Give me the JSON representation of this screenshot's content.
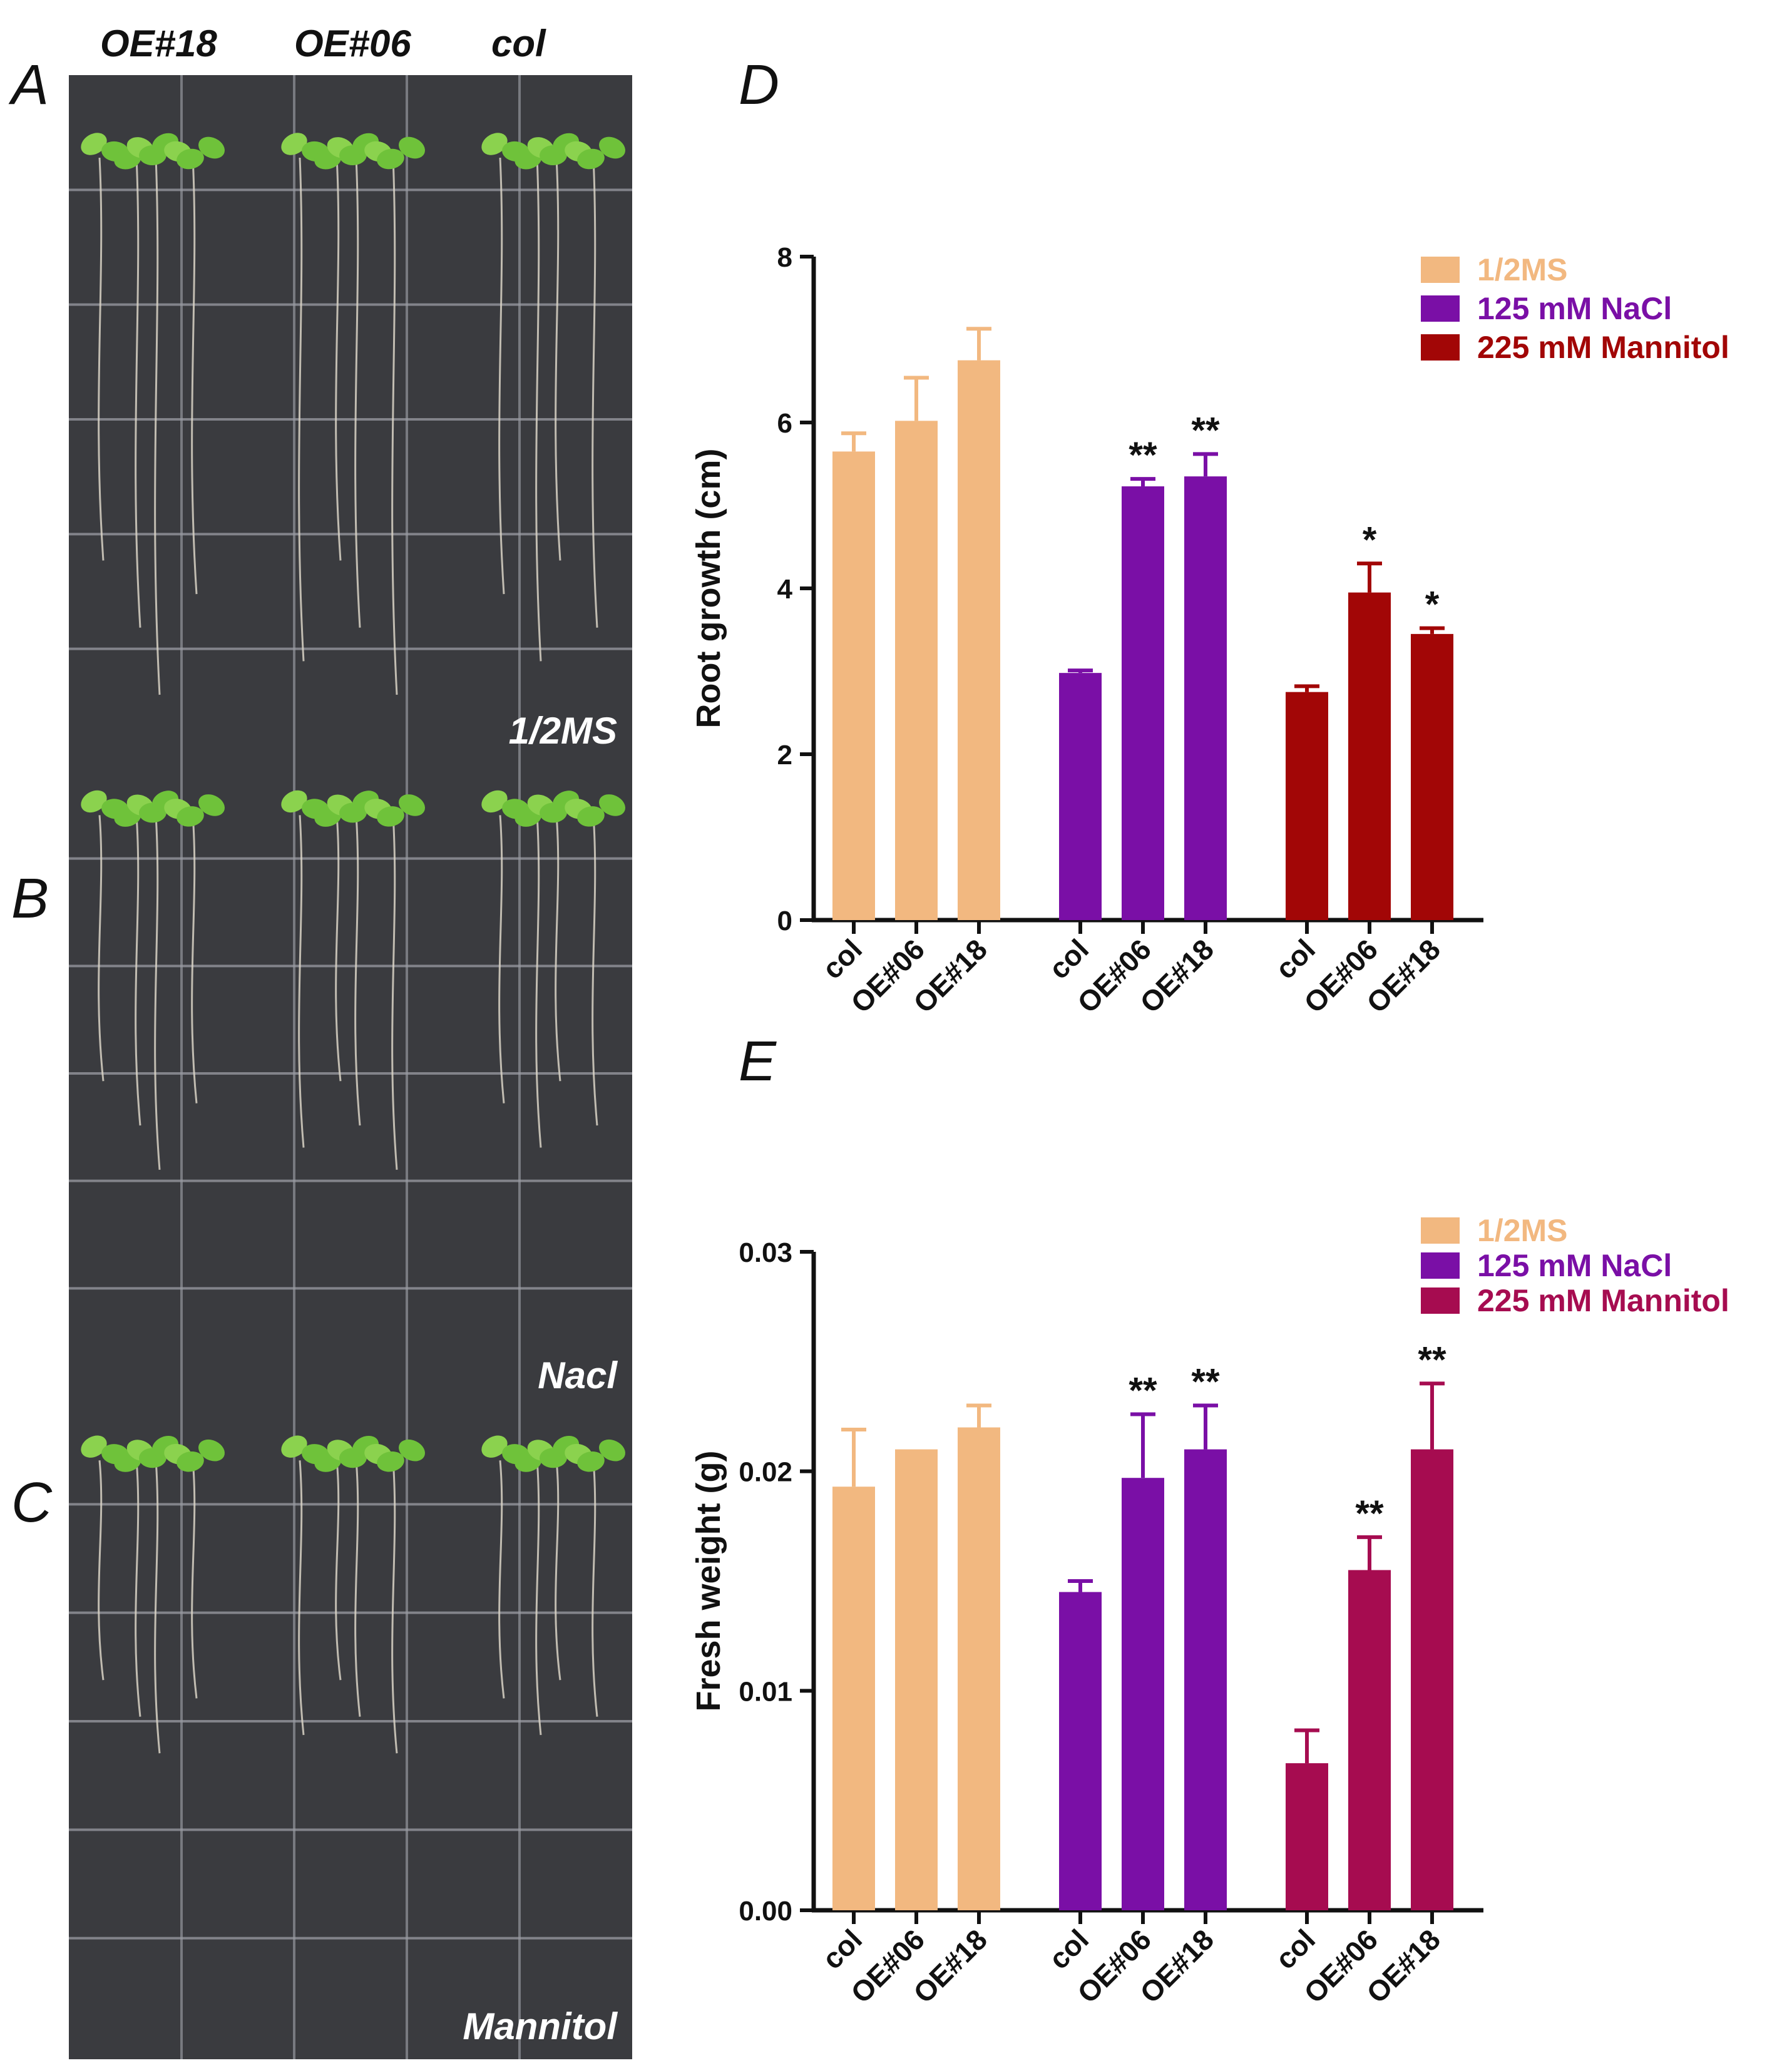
{
  "figure": {
    "panel_letters": {
      "A": "A",
      "B": "B",
      "C": "C",
      "D": "D",
      "E": "E"
    },
    "genotype_header": [
      "OE#18",
      "OE#06",
      "col"
    ],
    "plates": [
      {
        "label": "1/2MS"
      },
      {
        "label": "Nacl"
      },
      {
        "label": "Mannitol"
      }
    ]
  },
  "chart_data": [
    {
      "type": "bar",
      "ylabel": "Root growth (cm)",
      "ylim": [
        0,
        8
      ],
      "yticks": [
        "0",
        "2",
        "4",
        "6",
        "8"
      ],
      "categories": [
        "col",
        "OE#06",
        "OE#18"
      ],
      "legend_position": "top-right",
      "series": [
        {
          "name": "1/2MS",
          "color": "#f2b880",
          "values": [
            5.65,
            6.02,
            6.75
          ],
          "errors": [
            0.22,
            0.52,
            0.38
          ],
          "sig": [
            "",
            "",
            ""
          ]
        },
        {
          "name": "125 mM NaCl",
          "color": "#7a0fa6",
          "values": [
            2.98,
            5.23,
            5.35
          ],
          "errors": [
            0.03,
            0.09,
            0.27
          ],
          "sig": [
            "",
            "**",
            "**"
          ]
        },
        {
          "name": "225 mM Mannitol",
          "color": "#a20606",
          "values": [
            2.75,
            3.95,
            3.45
          ],
          "errors": [
            0.07,
            0.35,
            0.07
          ],
          "sig": [
            "",
            "*",
            "*"
          ]
        }
      ]
    },
    {
      "type": "bar",
      "ylabel": "Fresh weight (g)",
      "ylim": [
        0,
        0.03
      ],
      "yticks": [
        "0.00",
        "0.01",
        "0.02",
        "0.03"
      ],
      "categories": [
        "col",
        "OE#06",
        "OE#18"
      ],
      "legend_position": "top-right",
      "series": [
        {
          "name": "1/2MS",
          "color": "#f2b880",
          "values": [
            0.0193,
            0.021,
            0.022
          ],
          "errors": [
            0.0026,
            0,
            0.001
          ],
          "sig": [
            "",
            "",
            ""
          ]
        },
        {
          "name": "125 mM NaCl",
          "color": "#7a0fa6",
          "values": [
            0.0145,
            0.0197,
            0.021
          ],
          "errors": [
            0.0005,
            0.0029,
            0.002
          ],
          "sig": [
            "",
            "**",
            "**"
          ]
        },
        {
          "name": "225 mM Mannitol",
          "color": "#a60c50",
          "values": [
            0.0067,
            0.0155,
            0.021
          ],
          "errors": [
            0.0015,
            0.0015,
            0.003
          ],
          "sig": [
            "",
            "**",
            "**"
          ]
        }
      ]
    }
  ]
}
